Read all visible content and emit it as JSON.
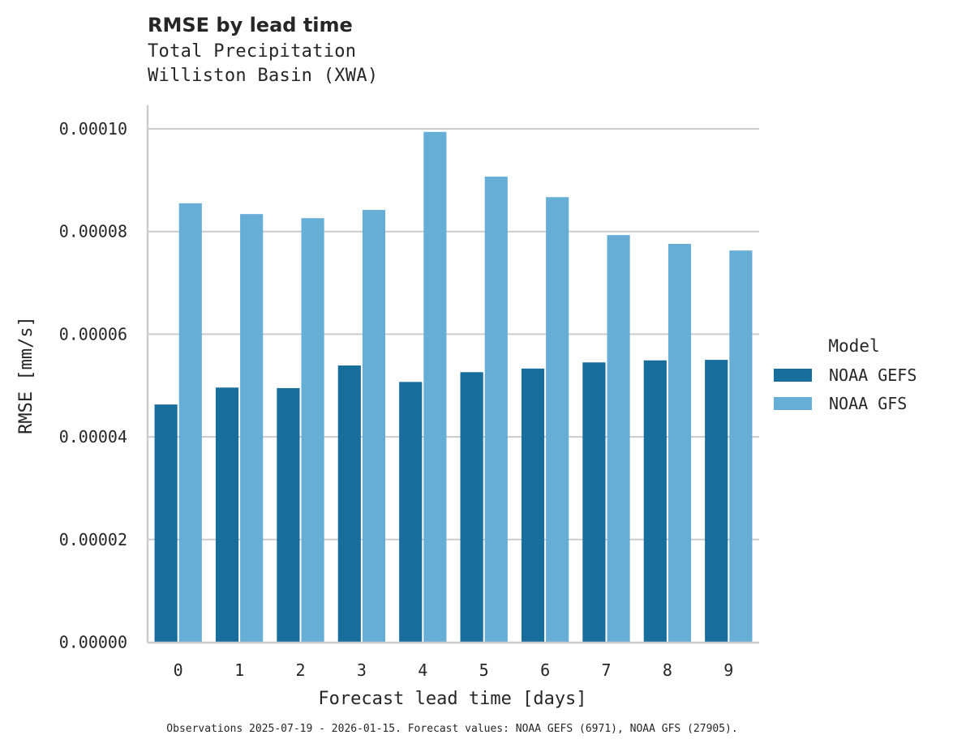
{
  "header": {
    "title": "RMSE by lead time",
    "subtitle_line1": "Total Precipitation",
    "subtitle_line2": "Williston Basin (XWA)"
  },
  "footnote": "Observations 2025-07-19 - 2026-01-15. Forecast values: NOAA GEFS (6971), NOAA GFS (27905).",
  "colors": {
    "gefs": "#176d9c",
    "gfs": "#67aed7",
    "grid": "#cccccc",
    "axis": "#cccccc",
    "text": "#262626"
  },
  "chart_data": {
    "type": "bar",
    "title": "RMSE by lead time",
    "subtitle": "Total Precipitation / Williston Basin (XWA)",
    "xlabel": "Forecast lead time [days]",
    "ylabel": "RMSE [mm/s]",
    "categories": [
      "0",
      "1",
      "2",
      "3",
      "4",
      "5",
      "6",
      "7",
      "8",
      "9"
    ],
    "series": [
      {
        "name": "NOAA GEFS",
        "color": "#176d9c",
        "values": [
          4.63e-05,
          4.96e-05,
          4.95e-05,
          5.39e-05,
          5.07e-05,
          5.26e-05,
          5.33e-05,
          5.45e-05,
          5.49e-05,
          5.5e-05
        ]
      },
      {
        "name": "NOAA GFS",
        "color": "#67aed7",
        "values": [
          8.55e-05,
          8.34e-05,
          8.26e-05,
          8.42e-05,
          9.94e-05,
          9.07e-05,
          8.67e-05,
          7.93e-05,
          7.76e-05,
          7.63e-05
        ]
      }
    ],
    "ylim": [
      0,
      0.000105
    ],
    "yticks": [
      "0.00000",
      "0.00002",
      "0.00004",
      "0.00006",
      "0.00008",
      "0.00010"
    ],
    "ytick_values": [
      0,
      2e-05,
      4e-05,
      6e-05,
      8e-05,
      0.0001
    ],
    "grid": "horizontal",
    "legend": {
      "title": "Model",
      "position": "right",
      "entries": [
        "NOAA GEFS",
        "NOAA GFS"
      ]
    }
  }
}
